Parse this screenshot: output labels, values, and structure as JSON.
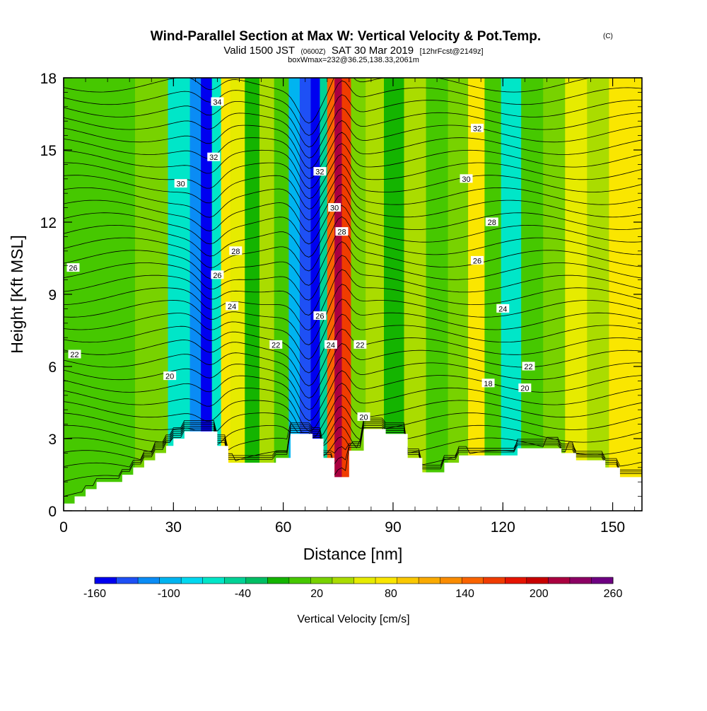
{
  "title": {
    "main": "Wind-Parallel Section at Max W: Vertical Velocity & Pot.Temp.",
    "copyright": "(C)",
    "valid_prefix": "Valid 1500 JST",
    "valid_zulu": "(0600Z)",
    "valid_date": "SAT 30 Mar 2019",
    "forecast": "[12hrFcst@2149z]",
    "box_info": "boxWmax=232@36.25,138.33,2061m"
  },
  "chart_data": {
    "type": "heatmap",
    "xlabel": "Distance [nm]",
    "ylabel": "Height [Kft MSL]",
    "xlim": [
      0,
      158
    ],
    "ylim": [
      0,
      18
    ],
    "x_ticks": [
      "0",
      "30",
      "60",
      "90",
      "120",
      "150"
    ],
    "y_ticks": [
      "0",
      "3",
      "6",
      "9",
      "12",
      "15",
      "18"
    ],
    "colorbar": {
      "title": "Vertical Velocity [cm/s]",
      "tick_labels": [
        "-160",
        "-100",
        "-40",
        "20",
        "80",
        "140",
        "200",
        "260"
      ],
      "range": [
        -160,
        260
      ],
      "colors": [
        "#0000f0",
        "#1e50f5",
        "#0a8cf5",
        "#00b4f0",
        "#00d8f0",
        "#00e6c8",
        "#00d296",
        "#00be64",
        "#14b400",
        "#46c800",
        "#78d200",
        "#aadc00",
        "#e6eb00",
        "#fae600",
        "#fac800",
        "#faaa00",
        "#fa8c00",
        "#fa6400",
        "#f03c00",
        "#e61400",
        "#c80000",
        "#aa0040",
        "#8c0064",
        "#6e0082"
      ]
    },
    "velocity_columns": [
      {
        "x": 0,
        "w": 0
      },
      {
        "x": 6,
        "w": 10
      },
      {
        "x": 15,
        "w": 0
      },
      {
        "x": 24,
        "w": 20
      },
      {
        "x": 33,
        "w": -60
      },
      {
        "x": 36,
        "w": -110
      },
      {
        "x": 39,
        "w": -150
      },
      {
        "x": 42,
        "w": -70
      },
      {
        "x": 44,
        "w": 70
      },
      {
        "x": 47,
        "w": 60
      },
      {
        "x": 52,
        "w": -20
      },
      {
        "x": 55,
        "w": 40
      },
      {
        "x": 60,
        "w": 0
      },
      {
        "x": 63,
        "w": -100
      },
      {
        "x": 66,
        "w": -130
      },
      {
        "x": 69,
        "w": -160
      },
      {
        "x": 71,
        "w": -40
      },
      {
        "x": 73,
        "w": 150
      },
      {
        "x": 75,
        "w": 220
      },
      {
        "x": 77,
        "w": 160
      },
      {
        "x": 80,
        "w": 20
      },
      {
        "x": 85,
        "w": 40
      },
      {
        "x": 90,
        "w": -10
      },
      {
        "x": 96,
        "w": 40
      },
      {
        "x": 102,
        "w": 10
      },
      {
        "x": 108,
        "w": 30
      },
      {
        "x": 113,
        "w": 70
      },
      {
        "x": 117,
        "w": 10
      },
      {
        "x": 122,
        "w": -60
      },
      {
        "x": 128,
        "w": 0
      },
      {
        "x": 134,
        "w": 30
      },
      {
        "x": 140,
        "w": 50
      },
      {
        "x": 146,
        "w": 40
      },
      {
        "x": 152,
        "w": 70
      },
      {
        "x": 158,
        "w": 80
      }
    ],
    "terrain": [
      [
        0,
        0.3
      ],
      [
        3,
        0.6
      ],
      [
        6,
        0.9
      ],
      [
        9,
        1.2
      ],
      [
        16,
        1.5
      ],
      [
        19,
        1.8
      ],
      [
        22,
        2.1
      ],
      [
        25,
        2.4
      ],
      [
        28,
        2.7
      ],
      [
        30,
        3.0
      ],
      [
        33,
        3.3
      ],
      [
        42,
        2.7
      ],
      [
        45,
        2.0
      ],
      [
        58,
        2.2
      ],
      [
        62,
        3.2
      ],
      [
        68,
        3.0
      ],
      [
        71,
        2.2
      ],
      [
        74,
        1.4
      ],
      [
        78,
        2.5
      ],
      [
        82,
        3.4
      ],
      [
        88,
        3.2
      ],
      [
        94,
        2.2
      ],
      [
        98,
        1.6
      ],
      [
        104,
        2.0
      ],
      [
        108,
        2.3
      ],
      [
        120,
        2.3
      ],
      [
        124,
        2.6
      ],
      [
        136,
        2.4
      ],
      [
        140,
        2.1
      ],
      [
        148,
        1.8
      ],
      [
        152,
        1.4
      ],
      [
        158,
        1.4
      ]
    ],
    "isentropes": {
      "label_values": [
        "34",
        "32",
        "30",
        "28",
        "26",
        "24",
        "22",
        "20",
        "18"
      ],
      "labels": [
        {
          "text": "34",
          "x": 42,
          "y": 17.0
        },
        {
          "text": "32",
          "x": 41,
          "y": 14.7
        },
        {
          "text": "30",
          "x": 32,
          "y": 13.6
        },
        {
          "text": "28",
          "x": 47,
          "y": 10.8
        },
        {
          "text": "26",
          "x": 2.6,
          "y": 10.1
        },
        {
          "text": "26",
          "x": 42,
          "y": 9.8
        },
        {
          "text": "24",
          "x": 46,
          "y": 8.5
        },
        {
          "text": "22",
          "x": 3,
          "y": 6.5
        },
        {
          "text": "22",
          "x": 58,
          "y": 6.9
        },
        {
          "text": "20",
          "x": 29,
          "y": 5.6
        },
        {
          "text": "32",
          "x": 70,
          "y": 14.1
        },
        {
          "text": "30",
          "x": 74,
          "y": 12.6
        },
        {
          "text": "28",
          "x": 76,
          "y": 11.6
        },
        {
          "text": "26",
          "x": 70,
          "y": 8.1
        },
        {
          "text": "24",
          "x": 73,
          "y": 6.9
        },
        {
          "text": "22",
          "x": 81,
          "y": 6.9
        },
        {
          "text": "20",
          "x": 82,
          "y": 3.9
        },
        {
          "text": "32",
          "x": 113,
          "y": 15.9
        },
        {
          "text": "30",
          "x": 110,
          "y": 13.8
        },
        {
          "text": "28",
          "x": 117,
          "y": 12.0
        },
        {
          "text": "26",
          "x": 113,
          "y": 10.4
        },
        {
          "text": "24",
          "x": 120,
          "y": 8.4
        },
        {
          "text": "22",
          "x": 127,
          "y": 6.0
        },
        {
          "text": "18",
          "x": 116,
          "y": 5.3
        },
        {
          "text": "20",
          "x": 126,
          "y": 5.1
        }
      ]
    }
  }
}
